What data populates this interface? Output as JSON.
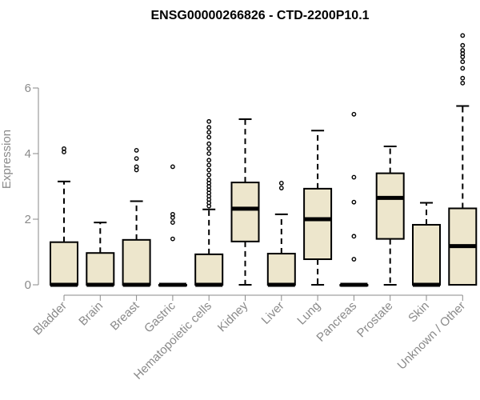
{
  "chart_data": {
    "type": "box",
    "title": "ENSG00000266826 - CTD-2200P10.1",
    "xlabel": "",
    "ylabel": "Expression",
    "ylim": [
      0,
      7.8
    ],
    "yticks": [
      0,
      2,
      4,
      6
    ],
    "grid": false,
    "box_fill": "#ede6cc",
    "box_stroke": "#000000",
    "categories": [
      "Bladder",
      "Brain",
      "Breast",
      "Gastric",
      "Hematopoietic cells",
      "Kidney",
      "Liver",
      "Lung",
      "Pancreas",
      "Prostate",
      "Skin",
      "Unknown / Other"
    ],
    "boxes": [
      {
        "whisker_low": 0,
        "q1": 0,
        "median": 0,
        "q3": 1.3,
        "whisker_high": 3.15,
        "outliers": [
          4.05,
          4.15
        ]
      },
      {
        "whisker_low": 0,
        "q1": 0,
        "median": 0,
        "q3": 0.97,
        "whisker_high": 1.9,
        "outliers": []
      },
      {
        "whisker_low": 0,
        "q1": 0,
        "median": 0,
        "q3": 1.37,
        "whisker_high": 2.55,
        "outliers": [
          3.5,
          3.6,
          3.85,
          4.1
        ]
      },
      {
        "whisker_low": 0,
        "q1": 0,
        "median": 0,
        "q3": 0,
        "whisker_high": 0,
        "outliers": [
          1.4,
          1.9,
          2.05,
          2.15,
          3.6
        ]
      },
      {
        "whisker_low": 0,
        "q1": 0,
        "median": 0,
        "q3": 0.93,
        "whisker_high": 2.3,
        "outliers": [
          2.4,
          2.5,
          2.6,
          2.7,
          2.8,
          2.9,
          3.0,
          3.1,
          3.2,
          3.35,
          3.5,
          3.65,
          3.8,
          4.0,
          4.15,
          4.3,
          4.5,
          4.65,
          4.8,
          4.98
        ]
      },
      {
        "whisker_low": 0,
        "q1": 1.32,
        "median": 2.32,
        "q3": 3.12,
        "whisker_high": 5.05,
        "outliers": []
      },
      {
        "whisker_low": 0,
        "q1": 0,
        "median": 0,
        "q3": 0.95,
        "whisker_high": 2.15,
        "outliers": [
          2.95,
          3.1
        ]
      },
      {
        "whisker_low": 0,
        "q1": 0.78,
        "median": 2.0,
        "q3": 2.93,
        "whisker_high": 4.7,
        "outliers": []
      },
      {
        "whisker_low": 0,
        "q1": 0,
        "median": 0,
        "q3": 0,
        "whisker_high": 0,
        "outliers": [
          0.78,
          1.48,
          2.52,
          3.28,
          5.2
        ]
      },
      {
        "whisker_low": 0,
        "q1": 1.4,
        "median": 2.65,
        "q3": 3.4,
        "whisker_high": 4.22,
        "outliers": []
      },
      {
        "whisker_low": 0,
        "q1": 0,
        "median": 0,
        "q3": 1.83,
        "whisker_high": 2.5,
        "outliers": []
      },
      {
        "whisker_low": 0,
        "q1": 0,
        "median": 1.18,
        "q3": 2.33,
        "whisker_high": 5.45,
        "outliers": [
          6.15,
          6.3,
          6.6,
          6.8,
          6.95,
          7.05,
          7.15,
          7.3,
          7.6
        ]
      }
    ]
  }
}
